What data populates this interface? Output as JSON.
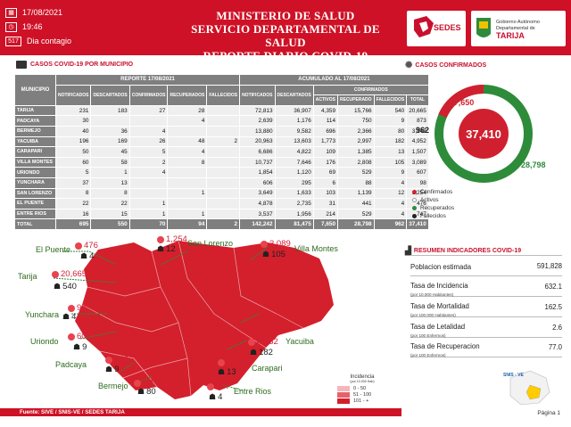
{
  "header": {
    "date": "17/08/2021",
    "time": "19:46",
    "day_num": "517",
    "day_label": "Dia contagio",
    "title_1": "MINISTERIO DE SALUD",
    "title_2": "SERVICIO DEPARTAMENTAL DE SALUD",
    "title_3": "REPORTE DIARIO COVID-19",
    "logo_sedes": "SEDES",
    "logo_gob_1": "Gobierno Autónomo",
    "logo_gob_2": "Departamental de",
    "logo_gob_3": "TARIJA"
  },
  "table_section": {
    "title": "CASOS COVID-19 POR MUNICIPIO"
  },
  "table": {
    "head_municipio": "MUNICIPIO",
    "head_reporte": "REPORTE 17/08/2021",
    "head_acumulado": "ACUMULADO AL 17/08/2021",
    "head_confirmados": "CONFIRMADOS",
    "cols": [
      "NOTIFICADOS",
      "DESCARTADOS",
      "CONFIRMADOS",
      "RECUPERADOS",
      "FALLECIDOS",
      "NOTIFICADOS",
      "DESCARTADOS",
      "ACTIVOS",
      "RECUPERADO",
      "FALLECIDOS",
      "TOTAL"
    ],
    "rows": [
      {
        "name": "TARIJA",
        "v": [
          "231",
          "183",
          "27",
          "28",
          "",
          "72,813",
          "36,907",
          "4,359",
          "15,766",
          "540",
          "20,665"
        ]
      },
      {
        "name": "PADCAYA",
        "v": [
          "30",
          "",
          "",
          "4",
          "",
          "2,639",
          "1,176",
          "114",
          "750",
          "9",
          "873"
        ]
      },
      {
        "name": "BERMEJO",
        "v": [
          "40",
          "36",
          "4",
          "",
          "",
          "13,880",
          "9,582",
          "696",
          "2,366",
          "80",
          "3,142"
        ]
      },
      {
        "name": "YACUIBA",
        "v": [
          "196",
          "169",
          "26",
          "48",
          "2",
          "20,963",
          "13,603",
          "1,773",
          "2,997",
          "182",
          "4,952"
        ]
      },
      {
        "name": "CARAPARI",
        "v": [
          "50",
          "45",
          "5",
          "4",
          "",
          "6,686",
          "4,822",
          "109",
          "1,385",
          "13",
          "1,507"
        ]
      },
      {
        "name": "VILLA MONTES",
        "v": [
          "60",
          "58",
          "2",
          "8",
          "",
          "10,737",
          "7,646",
          "176",
          "2,808",
          "105",
          "3,089"
        ]
      },
      {
        "name": "URIONDO",
        "v": [
          "5",
          "1",
          "4",
          "",
          "",
          "1,854",
          "1,120",
          "69",
          "529",
          "9",
          "607"
        ]
      },
      {
        "name": "YUNCHARA",
        "v": [
          "37",
          "13",
          "",
          "",
          "",
          "606",
          "295",
          "6",
          "88",
          "4",
          "98"
        ]
      },
      {
        "name": "SAN LORENZO",
        "v": [
          "8",
          "8",
          "",
          "1",
          "",
          "3,649",
          "1,633",
          "103",
          "1,139",
          "12",
          "1,254"
        ]
      },
      {
        "name": "EL PUENTE",
        "v": [
          "22",
          "22",
          "1",
          "",
          "",
          "4,878",
          "2,735",
          "31",
          "441",
          "4",
          "476"
        ]
      },
      {
        "name": "ENTRE RIOS",
        "v": [
          "16",
          "15",
          "1",
          "1",
          "",
          "3,537",
          "1,956",
          "214",
          "529",
          "4",
          "747"
        ]
      }
    ],
    "total": {
      "name": "TOTAL",
      "v": [
        "695",
        "550",
        "70",
        "94",
        "2",
        "142,242",
        "81,475",
        "7,650",
        "28,798",
        "962",
        "37,410"
      ]
    }
  },
  "confirmed_section": {
    "title": "CASOS CONFIRMADOS"
  },
  "donut": {
    "total": "37,410",
    "activos": "7,650",
    "recuperados": "28,798",
    "fallecidos": "962",
    "legend": [
      "Confirmados",
      "Activos",
      "Recuperados",
      "Fallecidos"
    ],
    "colors": {
      "confirmados": "#d0202f",
      "activos": "#ffffff",
      "recuperados": "#2e8b3a",
      "fallecidos": "#222222"
    }
  },
  "indicators_section": {
    "title": "RESUMEN INDICADORES COVID-19"
  },
  "indicators": [
    {
      "label": "Poblacion estimada",
      "sub": "",
      "value": "591,828"
    },
    {
      "label": "Tasa de Incidencia",
      "sub": "(por 10.000 Habitantes)",
      "value": "632.1"
    },
    {
      "label": "Tasa de Mortalidad",
      "sub": "(por 100.000 Habitantes)",
      "value": "162.5"
    },
    {
      "label": "Tasa de Letalidad",
      "sub": "(por 100 Enfermos)",
      "value": "2.6"
    },
    {
      "label": "Tasa de Recuperacion",
      "sub": "(por 100 Enfermos)",
      "value": "77.0"
    }
  ],
  "map": {
    "labels": {
      "el_puente": "El Puente",
      "tarija": "Tarija",
      "yunchara": "Yunchara",
      "uriondo": "Uriondo",
      "padcaya": "Padcaya",
      "bermejo": "Bermejo",
      "san_lorenzo": "San Lorenzo",
      "villa_montes": "Villa Montes",
      "yacuiba": "Yacuiba",
      "carapari": "Carapari",
      "entre_rios": "Entre Rios"
    },
    "values": {
      "el_puente": "476",
      "tarija": "20,665",
      "yunchara": "98",
      "uriondo": "607",
      "padcaya": "873",
      "bermejo": "3,142",
      "san_lorenzo": "1,254",
      "villa_montes": "3,089",
      "yacuiba": "4,952",
      "carapari": "1,507",
      "entre_rios": "747"
    },
    "deaths": {
      "el_puente": "4",
      "tarija": "540",
      "yunchara": "4",
      "uriondo": "9",
      "padcaya": "9",
      "bermejo": "80",
      "san_lorenzo": "12",
      "villa_montes": "105",
      "yacuiba": "182",
      "carapari": "13",
      "entre_rios": "4"
    },
    "legend_title": "Incidencia",
    "legend_sub": "(por 10.000 Hab)",
    "legend_items": [
      "0 - 50",
      "51 - 100",
      "101 - +"
    ],
    "region_color": "#d3202c"
  },
  "footer": {
    "source": "Fuente: SIVE / SNIS-VE / SEDES TARIJA",
    "page": "Página 1",
    "snis_logo": "SNIS - VE"
  }
}
